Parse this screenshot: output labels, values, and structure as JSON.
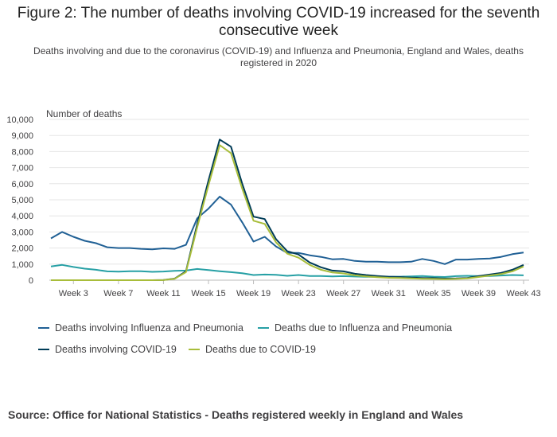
{
  "title": "Figure 2: The number of deaths involving COVID-19 increased for the seventh consecutive week",
  "subtitle": "Deaths involving and due to the coronavirus (COVID-19) and Influenza and Pneumonia, England and Wales, deaths registered in 2020",
  "source": "Source: Office for National Statistics - Deaths registered weekly in England and Wales",
  "colors": {
    "flu_involving": "#206095",
    "flu_due": "#27a0a5",
    "covid_involving": "#003c57",
    "covid_due": "#a8bd3a",
    "grid": "#e6e6e6",
    "axis": "#bbbbbb"
  },
  "chart_data": {
    "type": "line",
    "ylabel": "Number of deaths",
    "xlabel": "",
    "ylim": [
      0,
      10000
    ],
    "yticks": [
      0,
      1000,
      2000,
      3000,
      4000,
      5000,
      6000,
      7000,
      8000,
      9000,
      10000
    ],
    "ytick_labels": [
      "0",
      "1,000",
      "2,000",
      "3,000",
      "4,000",
      "5,000",
      "6,000",
      "7,000",
      "8,000",
      "9,000",
      "10,000"
    ],
    "x": [
      1,
      2,
      3,
      4,
      5,
      6,
      7,
      8,
      9,
      10,
      11,
      12,
      13,
      14,
      15,
      16,
      17,
      18,
      19,
      20,
      21,
      22,
      23,
      24,
      25,
      26,
      27,
      28,
      29,
      30,
      31,
      32,
      33,
      34,
      35,
      36,
      37,
      38,
      39,
      40,
      41,
      42,
      43
    ],
    "xticks": [
      3,
      7,
      11,
      15,
      19,
      23,
      27,
      31,
      35,
      39,
      43
    ],
    "xtick_labels": [
      "Week 3",
      "Week 7",
      "Week 11",
      "Week 15",
      "Week 19",
      "Week 23",
      "Week 27",
      "Week 31",
      "Week 35",
      "Week 39",
      "Week 43"
    ],
    "grid": true,
    "legend_position": "bottom",
    "series": [
      {
        "name": "Deaths involving Influenza and Pneumonia",
        "color_key": "flu_involving",
        "values": [
          2600,
          3000,
          2700,
          2450,
          2300,
          2050,
          2000,
          2000,
          1950,
          1920,
          1980,
          1950,
          2200,
          3850,
          4450,
          5200,
          4700,
          3600,
          2400,
          2700,
          2100,
          1700,
          1700,
          1550,
          1450,
          1300,
          1320,
          1200,
          1150,
          1150,
          1120,
          1120,
          1150,
          1320,
          1200,
          1000,
          1280,
          1280,
          1320,
          1350,
          1450,
          1620,
          1720
        ]
      },
      {
        "name": "Deaths due to Influenza and Pneumonia",
        "color_key": "flu_due",
        "values": [
          850,
          950,
          820,
          720,
          650,
          550,
          530,
          560,
          560,
          520,
          540,
          580,
          600,
          700,
          630,
          560,
          500,
          430,
          320,
          350,
          330,
          270,
          320,
          260,
          260,
          240,
          250,
          230,
          210,
          210,
          210,
          220,
          240,
          260,
          220,
          200,
          250,
          270,
          250,
          260,
          290,
          320,
          300
        ]
      },
      {
        "name": "Deaths involving COVID-19",
        "color_key": "covid_involving",
        "values": [
          0,
          0,
          0,
          0,
          0,
          0,
          0,
          0,
          0,
          0,
          10,
          100,
          550,
          3500,
          6200,
          8750,
          8300,
          6000,
          3950,
          3800,
          2550,
          1800,
          1600,
          1100,
          800,
          600,
          550,
          400,
          320,
          260,
          220,
          200,
          160,
          140,
          130,
          100,
          110,
          140,
          250,
          350,
          450,
          650,
          950
        ]
      },
      {
        "name": "Deaths due to COVID-19",
        "color_key": "covid_due",
        "values": [
          0,
          0,
          0,
          0,
          0,
          0,
          0,
          0,
          0,
          0,
          5,
          90,
          500,
          3300,
          5900,
          8400,
          7900,
          5700,
          3700,
          3500,
          2350,
          1650,
          1400,
          950,
          650,
          480,
          420,
          300,
          240,
          190,
          150,
          140,
          110,
          90,
          80,
          60,
          80,
          110,
          200,
          290,
          380,
          550,
          850
        ]
      }
    ]
  }
}
